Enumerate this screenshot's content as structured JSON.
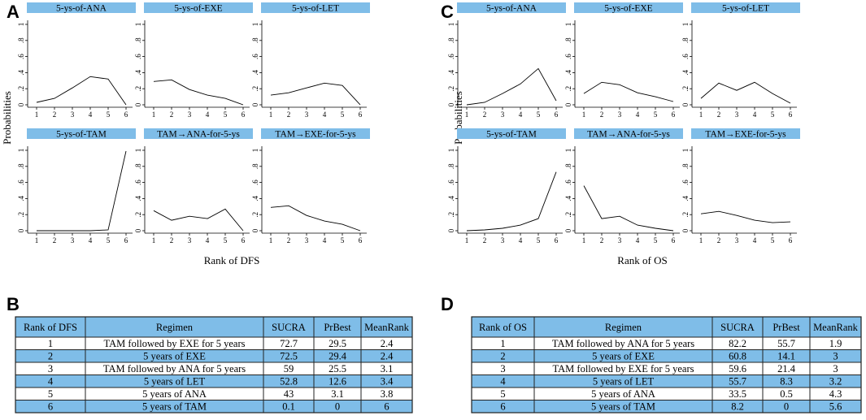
{
  "panels": {
    "A": "A",
    "B": "B",
    "C": "C",
    "D": "D"
  },
  "colors": {
    "header_fill": "#7fbde8",
    "row_blue": "#7fbde8",
    "row_white": "#ffffff",
    "line": "#000000",
    "border": "#222222"
  },
  "chart_data": [
    {
      "type": "line",
      "panel": "A",
      "ylabel": "Probabilities",
      "xlabel": "Rank of DFS",
      "x": [
        1,
        2,
        3,
        4,
        5,
        6
      ],
      "ylim": [
        0,
        1
      ],
      "ytick_labels": [
        "0",
        ".2",
        ".4",
        ".6",
        ".8",
        "1"
      ],
      "series": [
        {
          "name": "5-ys-of-ANA",
          "values": [
            0.03,
            0.08,
            0.21,
            0.35,
            0.32,
            0.0
          ]
        },
        {
          "name": "5-ys-of-EXE",
          "values": [
            0.29,
            0.31,
            0.19,
            0.12,
            0.08,
            0.0
          ]
        },
        {
          "name": "5-ys-of-LET",
          "values": [
            0.12,
            0.15,
            0.21,
            0.27,
            0.24,
            0.0
          ]
        },
        {
          "name": "5-ys-of-TAM",
          "values": [
            0.0,
            0.0,
            0.0,
            0.0,
            0.01,
            0.99
          ]
        },
        {
          "name": "TAM→ANA-for-5-ys",
          "values": [
            0.25,
            0.13,
            0.18,
            0.15,
            0.27,
            0.0
          ]
        },
        {
          "name": "TAM→EXE-for-5-ys",
          "values": [
            0.29,
            0.31,
            0.19,
            0.12,
            0.08,
            0.0
          ]
        }
      ]
    },
    {
      "type": "line",
      "panel": "C",
      "ylabel": "Probabilities",
      "xlabel": "Rank of OS",
      "x": [
        1,
        2,
        3,
        4,
        5,
        6
      ],
      "ylim": [
        0,
        1
      ],
      "ytick_labels": [
        "0",
        ".2",
        ".4",
        ".6",
        ".8",
        "1"
      ],
      "series": [
        {
          "name": "5-ys-of-ANA",
          "values": [
            0.0,
            0.03,
            0.14,
            0.26,
            0.45,
            0.05
          ]
        },
        {
          "name": "5-ys-of-EXE",
          "values": [
            0.14,
            0.28,
            0.25,
            0.15,
            0.1,
            0.04
          ]
        },
        {
          "name": "5-ys-of-LET",
          "values": [
            0.08,
            0.27,
            0.18,
            0.28,
            0.14,
            0.02
          ]
        },
        {
          "name": "5-ys-of-TAM",
          "values": [
            0.0,
            0.01,
            0.03,
            0.07,
            0.15,
            0.73
          ]
        },
        {
          "name": "TAM→ANA-for-5-ys",
          "values": [
            0.56,
            0.15,
            0.18,
            0.07,
            0.03,
            0.0
          ]
        },
        {
          "name": "TAM→EXE-for-5-ys",
          "values": [
            0.21,
            0.24,
            0.19,
            0.13,
            0.1,
            0.11
          ]
        }
      ]
    },
    {
      "type": "table",
      "panel": "B",
      "columns": [
        "Rank of DFS",
        "Regimen",
        "SUCRA",
        "PrBest",
        "MeanRank"
      ],
      "rows": [
        [
          "1",
          "TAM followed by EXE for 5 years",
          "72.7",
          "29.5",
          "2.4"
        ],
        [
          "2",
          "5 years of EXE",
          "72.5",
          "29.4",
          "2.4"
        ],
        [
          "3",
          "TAM followed by ANA for 5 years",
          "59",
          "25.5",
          "3.1"
        ],
        [
          "4",
          "5 years of LET",
          "52.8",
          "12.6",
          "3.4"
        ],
        [
          "5",
          "5 years of ANA",
          "43",
          "3.1",
          "3.8"
        ],
        [
          "6",
          "5 years of TAM",
          "0.1",
          "0",
          "6"
        ]
      ]
    },
    {
      "type": "table",
      "panel": "D",
      "columns": [
        "Rank of OS",
        "Regimen",
        "SUCRA",
        "PrBest",
        "MeanRank"
      ],
      "rows": [
        [
          "1",
          "TAM followed by ANA for 5 years",
          "82.2",
          "55.7",
          "1.9"
        ],
        [
          "2",
          "5 years of EXE",
          "60.8",
          "14.1",
          "3"
        ],
        [
          "3",
          "TAM followed by EXE for 5 years",
          "59.6",
          "21.4",
          "3"
        ],
        [
          "4",
          "5 years of LET",
          "55.7",
          "8.3",
          "3.2"
        ],
        [
          "5",
          "5 years of ANA",
          "33.5",
          "0.5",
          "4.3"
        ],
        [
          "6",
          "5 years of TAM",
          "8.2",
          "0",
          "5.6"
        ]
      ]
    }
  ]
}
